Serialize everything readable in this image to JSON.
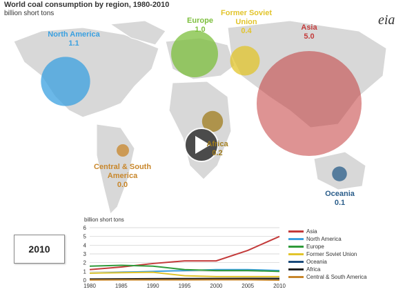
{
  "title": "World coal consumption by region, 1980-2010",
  "subtitle": "billion short tons",
  "logo": "eia",
  "year_display": "2010",
  "play_button": "play-icon",
  "regions": [
    {
      "name": "North America",
      "value": "1.1",
      "color": "#3aa0e0"
    },
    {
      "name": "Europe",
      "value": "1.0",
      "color": "#7cbf3c"
    },
    {
      "name": "Former Soviet Union",
      "value": "0.4",
      "color": "#e2c42b"
    },
    {
      "name": "Asia",
      "value": "5.0",
      "color": "#c33a3a"
    },
    {
      "name": "Africa",
      "value": "0.2",
      "color": "#a07c1c"
    },
    {
      "name": "Central & South America",
      "value": "0.0",
      "color": "#c8862a"
    },
    {
      "name": "Oceania",
      "value": "0.1",
      "color": "#2a5d8a"
    }
  ],
  "chart_data": {
    "type": "line",
    "ylabel": "billion short tons",
    "ylim": [
      0,
      6
    ],
    "yticks": [
      "0",
      "1",
      "2",
      "3",
      "4",
      "5",
      "6"
    ],
    "x": [
      1980,
      1985,
      1990,
      1995,
      2000,
      2005,
      2010
    ],
    "xticks": [
      "1980",
      "1985",
      "1990",
      "1995",
      "2000",
      "2005",
      "2010"
    ],
    "series": [
      {
        "name": "Asia",
        "color": "#c33a3a",
        "values": [
          1.2,
          1.5,
          1.9,
          2.2,
          2.2,
          3.4,
          5.0
        ]
      },
      {
        "name": "North America",
        "color": "#3aa0e0",
        "values": [
          0.8,
          0.9,
          1.0,
          1.1,
          1.2,
          1.2,
          1.1
        ]
      },
      {
        "name": "Europe",
        "color": "#2e9a3a",
        "values": [
          1.6,
          1.7,
          1.6,
          1.2,
          1.1,
          1.1,
          1.0
        ]
      },
      {
        "name": "Former Soviet Union",
        "color": "#e2c42b",
        "values": [
          0.8,
          0.85,
          0.9,
          0.5,
          0.4,
          0.4,
          0.4
        ]
      },
      {
        "name": "Oceania",
        "color": "#1a4a7a",
        "values": [
          0.08,
          0.09,
          0.1,
          0.11,
          0.13,
          0.14,
          0.1
        ]
      },
      {
        "name": "Africa",
        "color": "#222222",
        "values": [
          0.13,
          0.15,
          0.17,
          0.18,
          0.19,
          0.2,
          0.2
        ]
      },
      {
        "name": "Central & South America",
        "color": "#c8862a",
        "values": [
          0.02,
          0.03,
          0.03,
          0.03,
          0.04,
          0.04,
          0.0
        ]
      }
    ]
  }
}
